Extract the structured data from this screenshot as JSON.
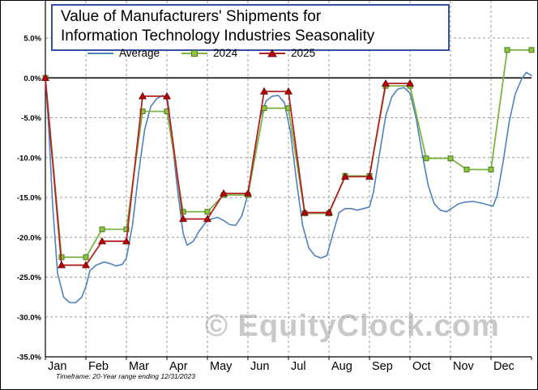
{
  "title": {
    "line1": "Value of Manufacturers' Shipments for",
    "line2": "Information Technology Industries Seasonality"
  },
  "legend": [
    {
      "label": "Average"
    },
    {
      "label": "2024"
    },
    {
      "label": "2025"
    }
  ],
  "watermark": "© EquityClock.com",
  "footnote": "Timeframe: 20-Year range ending 12/31/2023",
  "colors": {
    "title_border": "#33519E",
    "grid": "#999999",
    "axis": "#000000",
    "zero_line": "#000000",
    "watermark": "#C9C9C9",
    "background": "#FFFFFF"
  },
  "chart_data": {
    "type": "line",
    "title": "Value of Manufacturers' Shipments for Information Technology Industries Seasonality",
    "footnote": "Timeframe: 20-Year range ending 12/31/2023",
    "legend_position": "top-left",
    "grid": true,
    "x_axis": {
      "categories": [
        "Jan",
        "Feb",
        "Mar",
        "Apr",
        "May",
        "Jun",
        "Jul",
        "Aug",
        "Sep",
        "Oct",
        "Nov",
        "Dec"
      ],
      "unit": "month-of-year"
    },
    "y_axis": {
      "min": -35,
      "max": 5,
      "tick_step": 5,
      "tick_labels": [
        "5.0%",
        "0.0%",
        "-5.0%",
        "-10.0%",
        "-15.0%",
        "-20.0%",
        "-25.0%",
        "-30.0%",
        "-35.0%"
      ],
      "unit": "percent"
    },
    "series": [
      {
        "name": "Average",
        "color": "#4F81BD",
        "marker": "none",
        "line_width": 1.6,
        "points": [
          [
            0,
            0
          ],
          [
            0.08,
            -6
          ],
          [
            0.18,
            -16
          ],
          [
            0.3,
            -24.5
          ],
          [
            0.45,
            -27.5
          ],
          [
            0.6,
            -28.2
          ],
          [
            0.75,
            -28.2
          ],
          [
            0.9,
            -27.5
          ],
          [
            1,
            -26.2
          ],
          [
            1.1,
            -24.2
          ],
          [
            1.25,
            -23.5
          ],
          [
            1.45,
            -23.1
          ],
          [
            1.6,
            -23.3
          ],
          [
            1.75,
            -23.6
          ],
          [
            1.9,
            -23.4
          ],
          [
            2,
            -22.6
          ],
          [
            2.15,
            -18.5
          ],
          [
            2.3,
            -12
          ],
          [
            2.45,
            -6.5
          ],
          [
            2.6,
            -3.6
          ],
          [
            2.75,
            -2.6
          ],
          [
            2.9,
            -2.2
          ],
          [
            3,
            -2.8
          ],
          [
            3.1,
            -6.5
          ],
          [
            3.25,
            -13.5
          ],
          [
            3.4,
            -19.5
          ],
          [
            3.5,
            -21
          ],
          [
            3.65,
            -20.5
          ],
          [
            3.8,
            -19.2
          ],
          [
            3.95,
            -18.2
          ],
          [
            4.1,
            -17.7
          ],
          [
            4.25,
            -17.5
          ],
          [
            4.4,
            -17.9
          ],
          [
            4.55,
            -18.4
          ],
          [
            4.7,
            -18.5
          ],
          [
            4.85,
            -17.3
          ],
          [
            5,
            -14.6
          ],
          [
            5.15,
            -9.5
          ],
          [
            5.3,
            -5
          ],
          [
            5.45,
            -2.9
          ],
          [
            5.6,
            -2.3
          ],
          [
            5.75,
            -2.2
          ],
          [
            5.9,
            -3.1
          ],
          [
            6.05,
            -6.8
          ],
          [
            6.2,
            -13
          ],
          [
            6.35,
            -18.5
          ],
          [
            6.5,
            -21.3
          ],
          [
            6.65,
            -22.3
          ],
          [
            6.8,
            -22.6
          ],
          [
            6.95,
            -22.3
          ],
          [
            7.1,
            -19.5
          ],
          [
            7.25,
            -16.9
          ],
          [
            7.4,
            -16.4
          ],
          [
            7.55,
            -16.4
          ],
          [
            7.7,
            -16.6
          ],
          [
            7.85,
            -16.4
          ],
          [
            8,
            -16.2
          ],
          [
            8.1,
            -14.3
          ],
          [
            8.25,
            -9.5
          ],
          [
            8.4,
            -4.8
          ],
          [
            8.55,
            -2.4
          ],
          [
            8.7,
            -1.4
          ],
          [
            8.85,
            -1.2
          ],
          [
            9,
            -1.9
          ],
          [
            9.15,
            -5
          ],
          [
            9.3,
            -9.5
          ],
          [
            9.45,
            -13.5
          ],
          [
            9.6,
            -15.8
          ],
          [
            9.75,
            -16.6
          ],
          [
            9.9,
            -16.8
          ],
          [
            10.05,
            -16.3
          ],
          [
            10.2,
            -15.8
          ],
          [
            10.35,
            -15.6
          ],
          [
            10.55,
            -15.5
          ],
          [
            10.75,
            -15.7
          ],
          [
            10.9,
            -15.9
          ],
          [
            11.05,
            -16.1
          ],
          [
            11.15,
            -14.8
          ],
          [
            11.3,
            -10.5
          ],
          [
            11.45,
            -5.5
          ],
          [
            11.6,
            -2
          ],
          [
            11.75,
            -0.2
          ],
          [
            11.87,
            0.7
          ],
          [
            12,
            0.3
          ]
        ]
      },
      {
        "name": "2024",
        "color": "#7DB343",
        "marker": "square",
        "marker_fill": "#8CC63F",
        "marker_stroke": "#4E7B22",
        "line_width": 1.8,
        "start_value": 0,
        "monthly_values": [
          -22.5,
          -19.0,
          -4.2,
          -16.8,
          -14.7,
          -3.8,
          -17.0,
          -12.3,
          -1.0,
          -10.1,
          -11.5,
          3.5
        ]
      },
      {
        "name": "2025",
        "color": "#B22222",
        "marker": "triangle",
        "marker_fill": "#C00000",
        "marker_stroke": "#6B0F0F",
        "line_width": 1.8,
        "start_value": 0,
        "monthly_values": [
          -23.5,
          -20.5,
          -2.3,
          -17.7,
          -14.5,
          -1.7,
          -16.9,
          -12.4,
          -0.7
        ]
      }
    ]
  }
}
